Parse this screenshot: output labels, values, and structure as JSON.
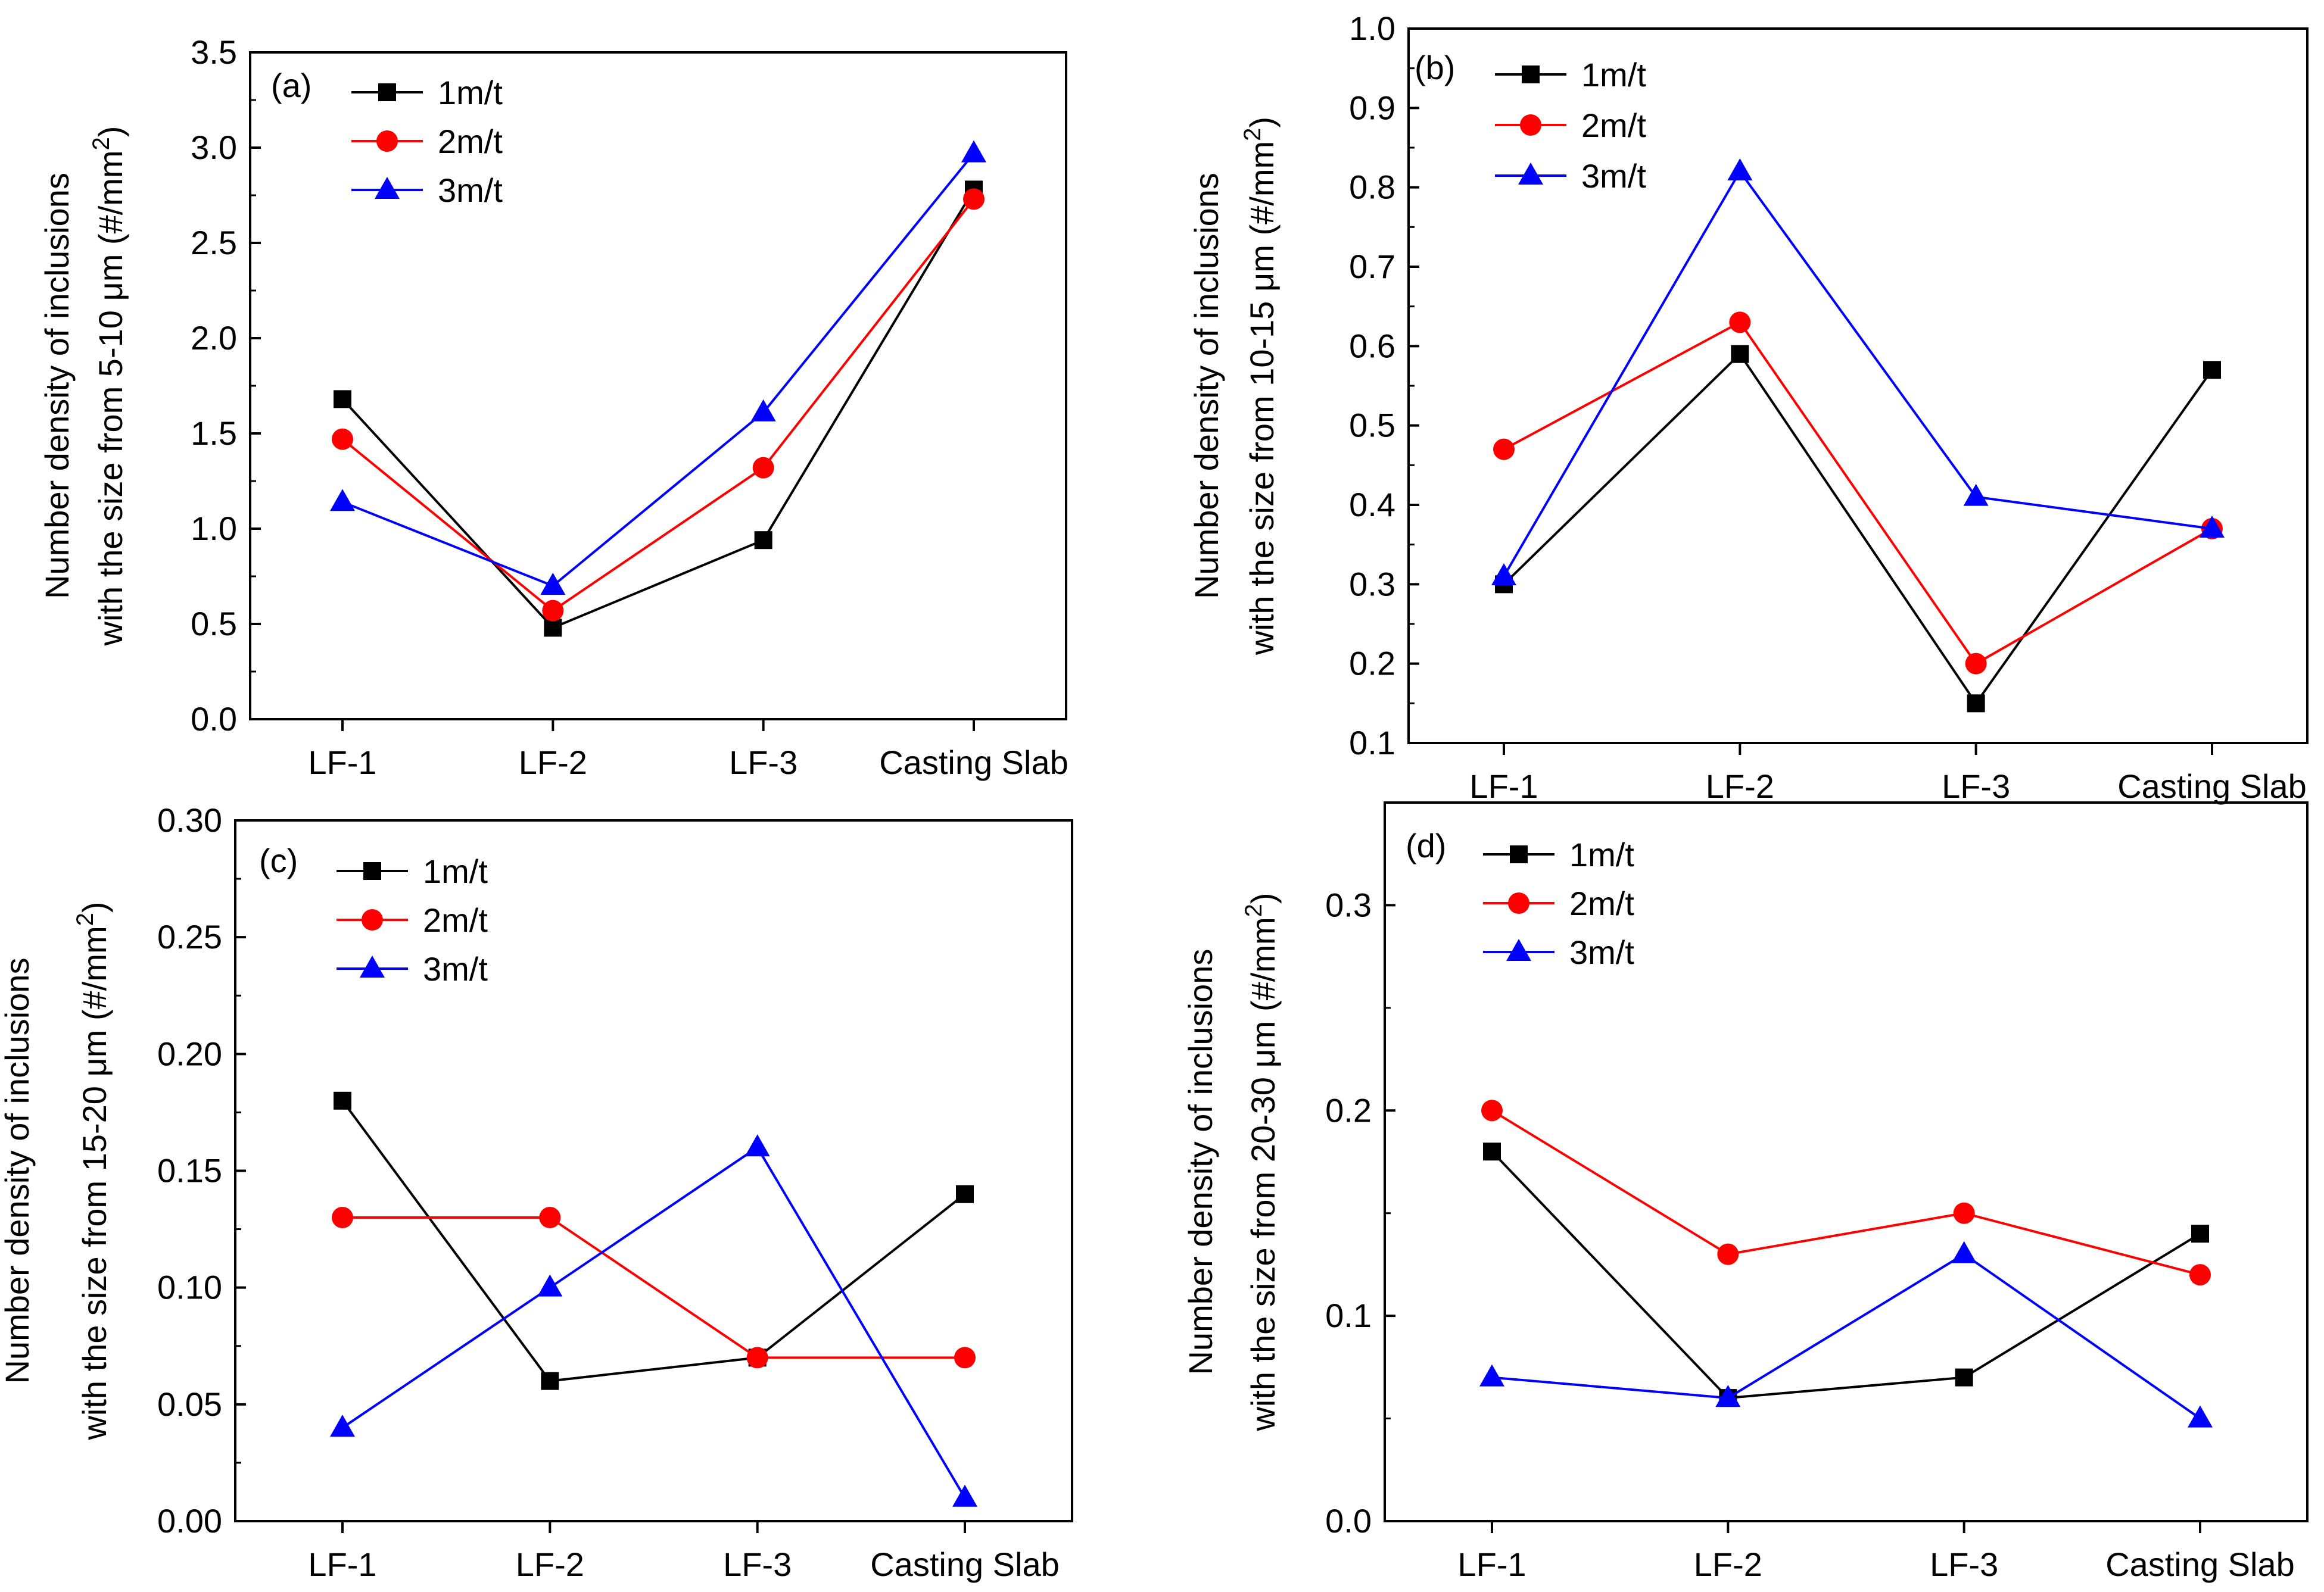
{
  "colors": {
    "1m/t": "#000000",
    "2m/t": "#ff0000",
    "3m/t": "#0000ff",
    "axis": "#000000"
  },
  "chart_data": [
    {
      "type": "line",
      "panel_label": "(a)",
      "categories": [
        "LF-1",
        "LF-2",
        "LF-3",
        "Casting Slab"
      ],
      "ylabel_line1": "Number density of inclusions",
      "ylabel_line2": "with the size from 5-10 μm (#/mm",
      "ylabel_sup": "2",
      "ylabel_end": ")",
      "ylim": [
        0,
        3.5
      ],
      "yticks": [
        0.0,
        0.5,
        1.0,
        1.5,
        2.0,
        2.5,
        3.0,
        3.5
      ],
      "ytick_labels": [
        "0.0",
        "0.5",
        "1.0",
        "1.5",
        "2.0",
        "2.5",
        "3.0",
        "3.5"
      ],
      "series": [
        {
          "name": "1m/t",
          "marker": "square",
          "values": [
            1.68,
            0.48,
            0.94,
            2.78
          ]
        },
        {
          "name": "2m/t",
          "marker": "circle",
          "values": [
            1.47,
            0.57,
            1.32,
            2.73
          ]
        },
        {
          "name": "3m/t",
          "marker": "triangle",
          "values": [
            1.14,
            0.7,
            1.61,
            2.97
          ]
        }
      ]
    },
    {
      "type": "line",
      "panel_label": "(b)",
      "categories": [
        "LF-1",
        "LF-2",
        "LF-3",
        "Casting Slab"
      ],
      "ylabel_line1": "Number density of inclusions",
      "ylabel_line2": "with the size from 10-15 μm (#/mm",
      "ylabel_sup": "2",
      "ylabel_end": ")",
      "ylim": [
        0.1,
        1.0
      ],
      "yticks": [
        0.1,
        0.2,
        0.3,
        0.4,
        0.5,
        0.6,
        0.7,
        0.8,
        0.9,
        1.0
      ],
      "ytick_labels": [
        "0.1",
        "0.2",
        "0.3",
        "0.4",
        "0.5",
        "0.6",
        "0.7",
        "0.8",
        "0.9",
        "1.0"
      ],
      "series": [
        {
          "name": "1m/t",
          "marker": "square",
          "values": [
            0.3,
            0.59,
            0.15,
            0.57
          ]
        },
        {
          "name": "2m/t",
          "marker": "circle",
          "values": [
            0.47,
            0.63,
            0.2,
            0.37
          ]
        },
        {
          "name": "3m/t",
          "marker": "triangle",
          "values": [
            0.31,
            0.82,
            0.41,
            0.37
          ]
        }
      ]
    },
    {
      "type": "line",
      "panel_label": "(c)",
      "categories": [
        "LF-1",
        "LF-2",
        "LF-3",
        "Casting Slab"
      ],
      "ylabel_line1": "Number density of inclusions",
      "ylabel_line2": "with the size from 15-20 μm (#/mm",
      "ylabel_sup": "2",
      "ylabel_end": ")",
      "ylim": [
        0,
        0.3
      ],
      "yticks": [
        0.0,
        0.05,
        0.1,
        0.15,
        0.2,
        0.25,
        0.3
      ],
      "ytick_labels": [
        "0.00",
        "0.05",
        "0.10",
        "0.15",
        "0.20",
        "0.25",
        "0.30"
      ],
      "series": [
        {
          "name": "1m/t",
          "marker": "square",
          "values": [
            0.18,
            0.06,
            0.07,
            0.14
          ]
        },
        {
          "name": "2m/t",
          "marker": "circle",
          "values": [
            0.13,
            0.13,
            0.07,
            0.07
          ]
        },
        {
          "name": "3m/t",
          "marker": "triangle",
          "values": [
            0.04,
            0.1,
            0.16,
            0.01
          ]
        }
      ]
    },
    {
      "type": "line",
      "panel_label": "(d)",
      "categories": [
        "LF-1",
        "LF-2",
        "LF-3",
        "Casting Slab"
      ],
      "ylabel_line1": "Number density of inclusions",
      "ylabel_line2": "with the size from 20-30 μm (#/mm",
      "ylabel_sup": "2",
      "ylabel_end": ")",
      "ylim": [
        0,
        0.35
      ],
      "yticks": [
        0.0,
        0.1,
        0.2,
        0.3
      ],
      "ytick_labels": [
        "0.0",
        "0.1",
        "0.2",
        "0.3"
      ],
      "series": [
        {
          "name": "1m/t",
          "marker": "square",
          "values": [
            0.18,
            0.06,
            0.07,
            0.14
          ]
        },
        {
          "name": "2m/t",
          "marker": "circle",
          "values": [
            0.2,
            0.13,
            0.15,
            0.12
          ]
        },
        {
          "name": "3m/t",
          "marker": "triangle",
          "values": [
            0.07,
            0.06,
            0.13,
            0.05
          ]
        }
      ]
    }
  ]
}
